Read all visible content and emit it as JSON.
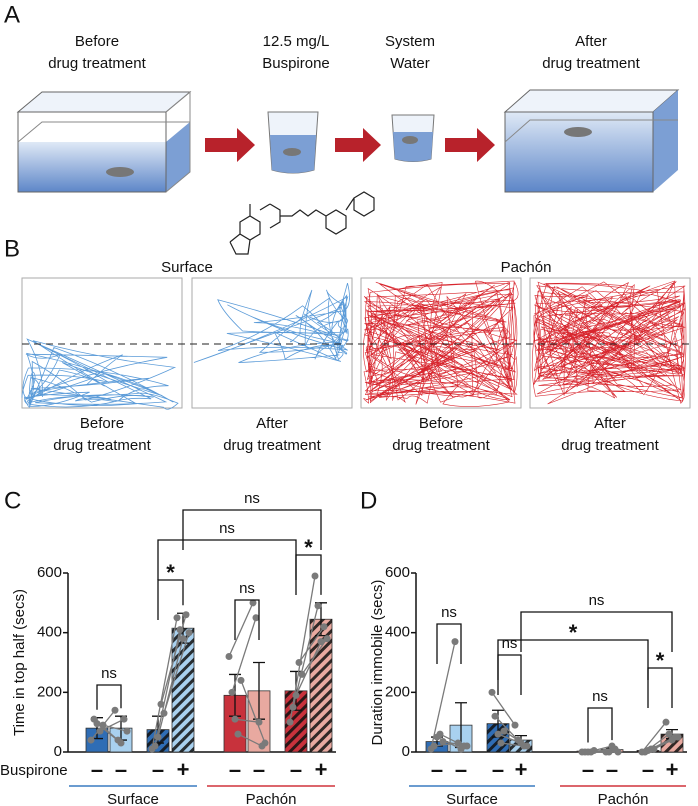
{
  "panel_a": {
    "label": "A",
    "steps": [
      [
        "Before",
        "drug treatment"
      ],
      [
        "12.5 mg/L",
        "Buspirone"
      ],
      [
        "System",
        "Water"
      ],
      [
        "After",
        "drug treatment"
      ]
    ]
  },
  "panel_b": {
    "label": "B",
    "groups": [
      "Surface",
      "Pachón"
    ],
    "captions": [
      [
        "Before",
        "drug treatment"
      ],
      [
        "After",
        "drug treatment"
      ],
      [
        "Before",
        "drug treatment"
      ],
      [
        "After",
        "drug treatment"
      ]
    ]
  },
  "chart_data": [
    {
      "type": "bar",
      "panel": "C",
      "ylabel": "Time in top half (secs)",
      "ylim": [
        0,
        600
      ],
      "yticks": [
        0,
        200,
        400,
        600
      ],
      "factor_label": "Buspirone",
      "categories": [
        "–",
        "–",
        "–",
        "+",
        "–",
        "–",
        "–",
        "+"
      ],
      "groups": [
        {
          "name": "Surface",
          "color": "#3a7cc0",
          "count": 4
        },
        {
          "name": "Pachón",
          "color": "#d0343c",
          "count": 4
        }
      ],
      "values": [
        80,
        80,
        75,
        415,
        190,
        205,
        205,
        445
      ],
      "errors": [
        35,
        40,
        45,
        50,
        70,
        95,
        65,
        55
      ],
      "colors": [
        "#2f6db5",
        "#a9d1ef",
        "#2f6db5",
        "#a9d1ef",
        "#c8323c",
        "#e8a9a0",
        "#c8323c",
        "#e8a9a0"
      ],
      "hatched": [
        false,
        false,
        true,
        true,
        false,
        false,
        true,
        true
      ],
      "points": [
        [
          40,
          110,
          95,
          70,
          90
        ],
        [
          140,
          40,
          30,
          110,
          70
        ],
        [
          10,
          20,
          50,
          160,
          130
        ],
        [
          450,
          410,
          380,
          460,
          400
        ],
        [
          320,
          200,
          110,
          60,
          240
        ],
        [
          500,
          450,
          100,
          20,
          30
        ],
        [
          100,
          150,
          190,
          300,
          260
        ],
        [
          590,
          490,
          370,
          420,
          380
        ]
      ],
      "annotations": [
        {
          "text": "ns",
          "from": 0,
          "to": 1
        },
        {
          "text": "*",
          "from": 2,
          "to": 3
        },
        {
          "text": "ns",
          "from": 4,
          "to": 5
        },
        {
          "text": "*",
          "from": 6,
          "to": 7
        },
        {
          "text": "ns",
          "from": 2,
          "to": 6
        },
        {
          "text": "ns",
          "from": 3,
          "to": 7
        }
      ]
    },
    {
      "type": "bar",
      "panel": "D",
      "ylabel": "Duration immobile (secs)",
      "ylim": [
        0,
        600
      ],
      "yticks": [
        0,
        200,
        400,
        600
      ],
      "categories": [
        "–",
        "–",
        "–",
        "+",
        "–",
        "–",
        "–",
        "+"
      ],
      "groups": [
        {
          "name": "Surface",
          "color": "#3a7cc0",
          "count": 4
        },
        {
          "name": "Pachón",
          "color": "#d0343c",
          "count": 4
        }
      ],
      "values": [
        35,
        90,
        95,
        40,
        3,
        8,
        5,
        60
      ],
      "errors": [
        15,
        75,
        45,
        15,
        2,
        5,
        3,
        15
      ],
      "colors": [
        "#2f6db5",
        "#a9d1ef",
        "#2f6db5",
        "#a9d1ef",
        "#c8323c",
        "#e8a9a0",
        "#c8323c",
        "#e8a9a0"
      ],
      "hatched": [
        false,
        false,
        true,
        true,
        false,
        false,
        true,
        true
      ],
      "points": [
        [
          10,
          20,
          50,
          60,
          35
        ],
        [
          370,
          30,
          10,
          20,
          20
        ],
        [
          200,
          120,
          60,
          30,
          70
        ],
        [
          90,
          40,
          30,
          20,
          20
        ],
        [
          0,
          0,
          0,
          0,
          5
        ],
        [
          0,
          0,
          20,
          10,
          0
        ],
        [
          0,
          0,
          5,
          10,
          10
        ],
        [
          100,
          60,
          40,
          50,
          50
        ]
      ],
      "annotations": [
        {
          "text": "ns",
          "from": 0,
          "to": 1
        },
        {
          "text": "ns",
          "from": 2,
          "to": 3
        },
        {
          "text": "ns",
          "from": 4,
          "to": 5
        },
        {
          "text": "*",
          "from": 6,
          "to": 7
        },
        {
          "text": "*",
          "from": 2,
          "to": 6
        },
        {
          "text": "ns",
          "from": 3,
          "to": 7
        }
      ]
    }
  ]
}
